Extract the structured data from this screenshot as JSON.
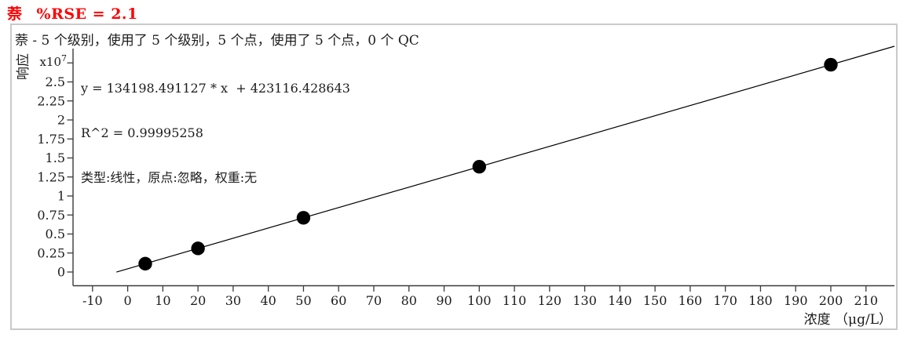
{
  "header": {
    "analyte": "萘",
    "rse_text": "%RSE = 2.1",
    "accent_color": "#ff0000"
  },
  "chart": {
    "summary": "萘 - 5 个级别，使用了 5 个级别，5 个点，使用了 5 个点，0 个 QC",
    "equation_line1": "y = 134198.491127 * x  + 423116.428643",
    "equation_line2": "R^2 = 0.99995258",
    "equation_line3": "类型:线性，原点:忽略，权重:无",
    "multiplier_prefix": "x10",
    "multiplier_exponent": "7"
  },
  "chart_data": {
    "type": "scatter",
    "title": "萘  %RSE = 2.1",
    "xlabel": "浓度 （μg/L）",
    "ylabel": "响应",
    "y_multiplier": 10000000,
    "x": [
      5,
      20,
      50,
      100,
      200
    ],
    "y": [
      1094109,
      3107086,
      7133041,
      13842966,
      27262815
    ],
    "fit": {
      "type": "线性",
      "origin": "忽略",
      "weight": "无",
      "slope": 134198.491127,
      "intercept": 423116.428643,
      "r_squared": 0.99995258,
      "rse_percent": 2.1
    },
    "xlim": [
      -16,
      219
    ],
    "ylim": [
      0,
      29400000
    ],
    "grid": false,
    "x_ticks": [
      -10,
      0,
      10,
      20,
      30,
      40,
      50,
      60,
      70,
      80,
      90,
      100,
      110,
      120,
      130,
      140,
      150,
      160,
      170,
      180,
      190,
      200,
      210
    ],
    "y_ticks": [
      {
        "v": 0,
        "label": "0"
      },
      {
        "v": 0.25,
        "label": "0.25"
      },
      {
        "v": 0.5,
        "label": "0.5"
      },
      {
        "v": 0.75,
        "label": "0.75"
      },
      {
        "v": 1,
        "label": "1"
      },
      {
        "v": 1.25,
        "label": "1.25"
      },
      {
        "v": 1.5,
        "label": "1.5"
      },
      {
        "v": 1.75,
        "label": "1.75"
      },
      {
        "v": 2,
        "label": "2"
      },
      {
        "v": 2.25,
        "label": "2.25"
      },
      {
        "v": 2.5,
        "label": "2.5"
      },
      {
        "v": 2.75,
        "label": ""
      }
    ],
    "point_color": "#000000",
    "line_color": "#000000",
    "axis_color": "#3a3a3a"
  }
}
